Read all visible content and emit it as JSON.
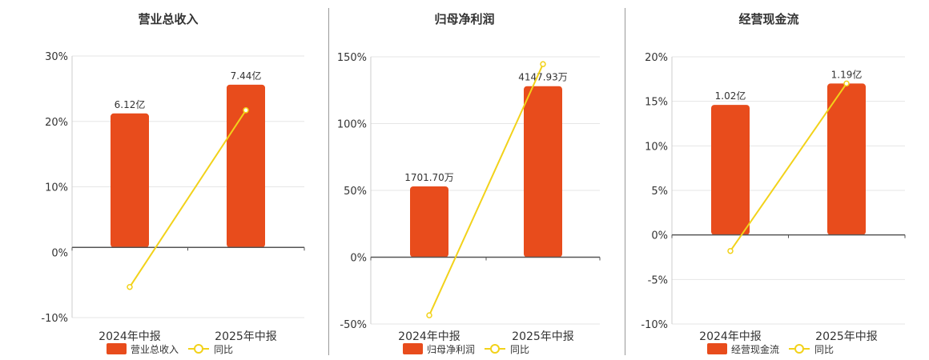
{
  "colors": {
    "bar": "#e84c1c",
    "line": "#f2d21a",
    "axis": "#555555",
    "grid": "#e6e6e6",
    "text": "#333333"
  },
  "chart_data": [
    {
      "type": "bar",
      "title": "营业总收入",
      "categories": [
        "2024年中报",
        "2025年中报"
      ],
      "bar_series": {
        "name": "营业总收入",
        "labels": [
          "6.12亿",
          "7.44亿"
        ],
        "pct_axis_height": [
          21,
          25.5
        ]
      },
      "line_series": {
        "name": "同比",
        "values": [
          -6.2,
          21.5
        ]
      },
      "y_ticks": [
        "30%",
        "20%",
        "10%",
        "0%",
        "-10%"
      ],
      "ylim": [
        -11,
        30
      ],
      "legend": "bottom"
    },
    {
      "type": "bar",
      "title": "归母净利润",
      "categories": [
        "2024年中报",
        "2025年中报"
      ],
      "bar_series": {
        "name": "归母净利润",
        "labels": [
          "1701.70万",
          "4147.93万"
        ],
        "pct_axis_height": [
          53,
          128
        ]
      },
      "line_series": {
        "name": "同比",
        "values": [
          -43.5,
          144.5
        ]
      },
      "y_ticks": [
        "150%",
        "100%",
        "50%",
        "0%",
        "-50%"
      ],
      "ylim": [
        -50,
        150
      ],
      "legend": "bottom"
    },
    {
      "type": "bar",
      "title": "经营现金流",
      "categories": [
        "2024年中报",
        "2025年中报"
      ],
      "bar_series": {
        "name": "经营现金流",
        "labels": [
          "1.02亿",
          "1.19亿"
        ],
        "pct_axis_height": [
          14.6,
          17
        ]
      },
      "line_series": {
        "name": "同比",
        "values": [
          -1.8,
          17
        ]
      },
      "y_ticks": [
        "20%",
        "15%",
        "10%",
        "5%",
        "0%",
        "-5%",
        "-10%"
      ],
      "ylim": [
        -10,
        20
      ],
      "legend": "bottom"
    }
  ]
}
